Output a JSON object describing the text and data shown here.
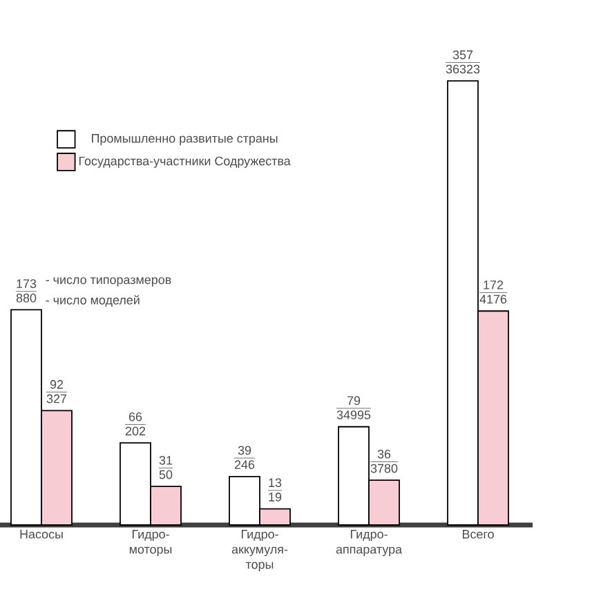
{
  "chart_data": {
    "type": "bar",
    "categories": [
      "Насосы",
      "Гидро-моторы",
      "Гидро-аккумуля-торы",
      "Гидро-аппаратура",
      "Всего"
    ],
    "series": [
      {
        "name": "Промышленно развитые страны",
        "color": "#ffffff",
        "values": [
          173,
          66,
          39,
          79,
          357
        ]
      },
      {
        "name": "Государства-участники Содружества",
        "color": "#f7cdd3",
        "values": [
          92,
          31,
          13,
          36,
          172
        ]
      }
    ],
    "data_labels": true,
    "legend": "top left",
    "annotations": [
      "- число типоразмеров",
      "- число моделей",
      {
        "text": "880",
        "x": "Насосы",
        "y": 173
      },
      {
        "text": "202",
        "x": "Гидро-моторы",
        "y": 66
      },
      {
        "text": "246",
        "x": "Гидро-аккумуля-торы",
        "y": 39
      },
      {
        "text": "34995",
        "x": "Гидро-аппаратура",
        "y": 79
      },
      {
        "text": "36323",
        "x": "Всего",
        "y": 357
      },
      {
        "text": "327",
        "x": "Насосы",
        "y": 92
      },
      {
        "text": "50",
        "x": "Гидро-моторы",
        "y": 31
      },
      {
        "text": "19",
        "x": "Гидро-аккумуля-торы",
        "y": 13
      },
      {
        "text": "3780",
        "x": "Гидро-аппаратура",
        "y": 36
      },
      {
        "text": "4176",
        "x": "Всего",
        "y": 172
      }
    ]
  }
}
